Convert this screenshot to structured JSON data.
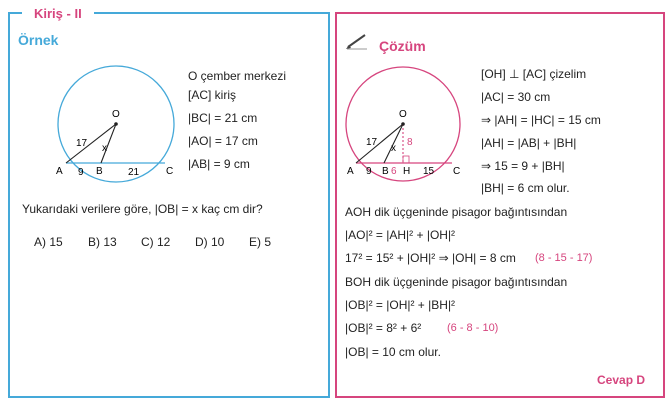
{
  "section_tab": "Kiriş - II",
  "left": {
    "header": "Örnek",
    "given": [
      "O  çember merkezi",
      "[AC]  kiriş",
      "|BC| = 21 cm",
      "|AO| = 17 cm",
      "|AB| = 9 cm"
    ],
    "question": "Yukarıdaki verilere göre, |OB| = x kaç cm dir?",
    "options": [
      "A) 15",
      "B) 13",
      "C) 12",
      "D) 10",
      "E) 5"
    ],
    "figure": {
      "O": "O",
      "A": "A",
      "B": "B",
      "C": "C",
      "seg_AB": "9",
      "seg_BC": "21",
      "seg_AO": "17",
      "seg_OB": "x"
    }
  },
  "right": {
    "header": "Çözüm",
    "steps": [
      "[OH] ⊥ [AC]  çizelim",
      "|AC| = 30 cm",
      "⇒  |AH| = |HC| = 15 cm",
      "|AH| = |AB| + |BH|",
      "⇒  15 = 9 + |BH|",
      "|BH| = 6 cm  olur."
    ],
    "line_aoh_title": "AOH  dik üçgeninde  pisagor  bağıntısından",
    "eq1": "|AO|² = |AH|² + |OH|²",
    "eq2": "17² = 15² + |OH|²  ⇒  |OH| = 8 cm",
    "eq2_note": "(8 - 15 - 17)",
    "line_boh_title": "BOH  dik üçgeninde  pisagor  bağıntısından",
    "eq3": "|OB|² = |OH|² + |BH|²",
    "eq4": "|OB|² = 8² + 6²",
    "eq4_note": "(6 - 8 - 10)",
    "eq5": "|OB| = 10 cm olur.",
    "answer": "Cevap D",
    "figure": {
      "O": "O",
      "A": "A",
      "B": "B",
      "H": "H",
      "C": "C",
      "seg_AB": "9",
      "seg_BH": "6",
      "seg_HC": "15",
      "seg_AO": "17",
      "seg_OB": "x",
      "seg_OH": "8"
    }
  },
  "colors": {
    "left_border": "#45a9d9",
    "right_border": "#d6457e",
    "accent": "#d6457e"
  }
}
